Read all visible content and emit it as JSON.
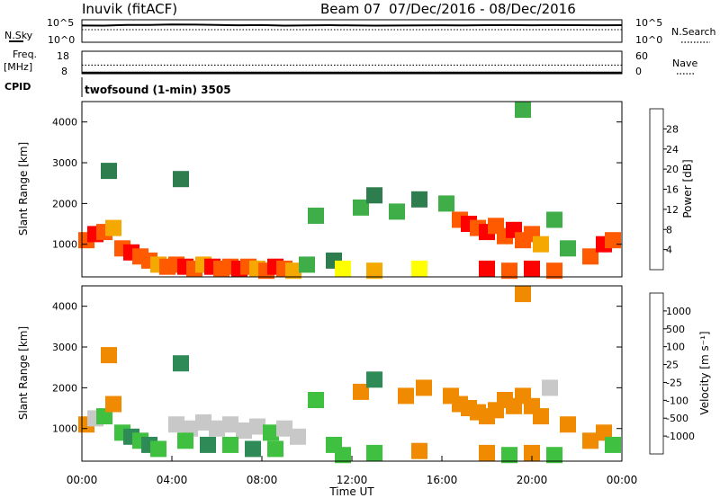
{
  "header": {
    "station": "Inuvik (fitACF)",
    "beam": "Beam 07",
    "date_range": "07/Dec/2016 - 08/Dec/2016"
  },
  "chart_data": [
    {
      "type": "line",
      "left_label": "N.Sky",
      "right_label": "N.Search",
      "left_ticks": [
        "10^5",
        "10^0"
      ],
      "right_ticks": [
        "10^5",
        "10^0"
      ],
      "series": [
        {
          "values": [
            5200,
            5000,
            7400,
            6800,
            9000,
            8400,
            7000,
            6000,
            6600,
            5000,
            5800,
            6200,
            5400,
            5000,
            5300,
            5800,
            6100,
            5600,
            6300,
            6500,
            5900,
            6700,
            6200,
            5900,
            6300
          ]
        }
      ],
      "x": [
        0,
        1,
        2,
        3,
        4,
        5,
        6,
        7,
        8,
        9,
        10,
        11,
        12,
        13,
        14,
        15,
        16,
        17,
        18,
        19,
        20,
        21,
        22,
        23,
        24
      ]
    },
    {
      "type": "line",
      "left_label": "Freq.",
      "left_unit": "[MHz]",
      "right_label": "Nave",
      "left_ticks": [
        "18",
        "8"
      ],
      "right_ticks": [
        "60",
        "0"
      ],
      "freq_mhz": 8.5,
      "nave": 23,
      "ylim_left": [
        8,
        18
      ],
      "ylim_right": [
        0,
        60
      ]
    },
    {
      "type": "table",
      "label": "CPID",
      "value": "twofsound (1-min) 3505"
    },
    {
      "type": "heatmap",
      "ylabel": "Slant Range [km]",
      "xlim": [
        0,
        24
      ],
      "ylim": [
        200,
        4500
      ],
      "yticks": [
        "4000",
        "3000",
        "2000",
        "1000"
      ],
      "ytick_values": [
        4000,
        3000,
        2000,
        1000
      ],
      "colorbar": {
        "label": "Power [dB]",
        "ticks": [
          "28",
          "24",
          "20",
          "16",
          "12",
          "8",
          "4"
        ],
        "colors": [
          "#0000ff",
          "#1f3fa0",
          "#2e7d4f",
          "#3fae49",
          "#ffff00",
          "#f5a800",
          "#ff5a00",
          "#ff0000"
        ]
      },
      "cells": [
        {
          "x": 0.2,
          "y": 1100,
          "v": 24
        },
        {
          "x": 0.6,
          "y": 1250,
          "v": 28
        },
        {
          "x": 1.0,
          "y": 1300,
          "v": 26
        },
        {
          "x": 1.4,
          "y": 1400,
          "v": 22
        },
        {
          "x": 1.8,
          "y": 900,
          "v": 26
        },
        {
          "x": 2.2,
          "y": 800,
          "v": 28
        },
        {
          "x": 2.6,
          "y": 700,
          "v": 26
        },
        {
          "x": 3.0,
          "y": 600,
          "v": 24
        },
        {
          "x": 3.4,
          "y": 500,
          "v": 22
        },
        {
          "x": 3.8,
          "y": 450,
          "v": 26
        },
        {
          "x": 4.2,
          "y": 500,
          "v": 24
        },
        {
          "x": 4.6,
          "y": 450,
          "v": 28
        },
        {
          "x": 5.0,
          "y": 400,
          "v": 26
        },
        {
          "x": 5.4,
          "y": 500,
          "v": 22
        },
        {
          "x": 5.8,
          "y": 450,
          "v": 28
        },
        {
          "x": 6.2,
          "y": 400,
          "v": 26
        },
        {
          "x": 6.6,
          "y": 450,
          "v": 24
        },
        {
          "x": 7.0,
          "y": 400,
          "v": 28
        },
        {
          "x": 7.4,
          "y": 450,
          "v": 26
        },
        {
          "x": 7.8,
          "y": 400,
          "v": 22
        },
        {
          "x": 8.2,
          "y": 350,
          "v": 26
        },
        {
          "x": 8.6,
          "y": 450,
          "v": 28
        },
        {
          "x": 9.0,
          "y": 400,
          "v": 24
        },
        {
          "x": 9.4,
          "y": 350,
          "v": 20
        },
        {
          "x": 10.0,
          "y": 500,
          "v": 14
        },
        {
          "x": 10.4,
          "y": 1700,
          "v": 12
        },
        {
          "x": 11.2,
          "y": 600,
          "v": 10
        },
        {
          "x": 12.4,
          "y": 1900,
          "v": 12
        },
        {
          "x": 13.0,
          "y": 2200,
          "v": 10
        },
        {
          "x": 14.0,
          "y": 1800,
          "v": 12
        },
        {
          "x": 15.0,
          "y": 2100,
          "v": 10
        },
        {
          "x": 16.2,
          "y": 2000,
          "v": 14
        },
        {
          "x": 16.8,
          "y": 1600,
          "v": 26
        },
        {
          "x": 17.2,
          "y": 1500,
          "v": 28
        },
        {
          "x": 17.6,
          "y": 1400,
          "v": 26
        },
        {
          "x": 18.0,
          "y": 1300,
          "v": 28
        },
        {
          "x": 18.4,
          "y": 1450,
          "v": 24
        },
        {
          "x": 18.8,
          "y": 1200,
          "v": 26
        },
        {
          "x": 19.2,
          "y": 1350,
          "v": 28
        },
        {
          "x": 19.6,
          "y": 1100,
          "v": 26
        },
        {
          "x": 20.0,
          "y": 1250,
          "v": 24
        },
        {
          "x": 20.4,
          "y": 1000,
          "v": 22
        },
        {
          "x": 21.0,
          "y": 1600,
          "v": 14
        },
        {
          "x": 21.6,
          "y": 900,
          "v": 12
        },
        {
          "x": 22.6,
          "y": 700,
          "v": 24
        },
        {
          "x": 23.2,
          "y": 1000,
          "v": 28
        },
        {
          "x": 23.6,
          "y": 1100,
          "v": 26
        },
        {
          "x": 18.0,
          "y": 400,
          "v": 28
        },
        {
          "x": 19.0,
          "y": 350,
          "v": 26
        },
        {
          "x": 20.0,
          "y": 400,
          "v": 28
        },
        {
          "x": 21.0,
          "y": 350,
          "v": 24
        },
        {
          "x": 13.0,
          "y": 350,
          "v": 20
        },
        {
          "x": 15.0,
          "y": 400,
          "v": 16
        },
        {
          "x": 11.6,
          "y": 400,
          "v": 18
        },
        {
          "x": 1.2,
          "y": 2800,
          "v": 10
        },
        {
          "x": 4.4,
          "y": 2600,
          "v": 8
        },
        {
          "x": 19.6,
          "y": 4300,
          "v": 12
        }
      ]
    },
    {
      "type": "heatmap",
      "ylabel": "Slant Range [km]",
      "xlabel": "Time UT",
      "xlim": [
        0,
        24
      ],
      "ylim": [
        200,
        4500
      ],
      "yticks": [
        "4000",
        "3000",
        "2000",
        "1000"
      ],
      "ytick_values": [
        4000,
        3000,
        2000,
        1000
      ],
      "xticks": [
        "00:00",
        "04:00",
        "08:00",
        "12:00",
        "16:00",
        "20:00",
        "00:00"
      ],
      "xtick_values": [
        0,
        4,
        8,
        12,
        16,
        20,
        24
      ],
      "colorbar": {
        "label": "Velocity [m s⁻¹]",
        "ticks": [
          "1000",
          "500",
          "100",
          "25",
          "-25",
          "-100",
          "-500",
          "-1000"
        ],
        "colors": [
          "#ff0000",
          "#ff5a00",
          "#f08a00",
          "#f5c000",
          "#c8c8c8",
          "#40c040",
          "#2e8b57",
          "#1f3fa0",
          "#0000ff"
        ]
      },
      "cells": [
        {
          "x": 0.2,
          "y": 1100,
          "v": -100
        },
        {
          "x": 0.6,
          "y": 1250,
          "v": 0
        },
        {
          "x": 1.0,
          "y": 1300,
          "v": 100
        },
        {
          "x": 1.4,
          "y": 1600,
          "v": -100
        },
        {
          "x": 1.8,
          "y": 900,
          "v": 100
        },
        {
          "x": 2.2,
          "y": 800,
          "v": 300
        },
        {
          "x": 2.6,
          "y": 700,
          "v": 100
        },
        {
          "x": 3.0,
          "y": 600,
          "v": 200
        },
        {
          "x": 3.4,
          "y": 500,
          "v": 100
        },
        {
          "x": 4.2,
          "y": 1100,
          "v": 0
        },
        {
          "x": 4.8,
          "y": 1000,
          "v": 0
        },
        {
          "x": 5.4,
          "y": 1150,
          "v": 0
        },
        {
          "x": 6.0,
          "y": 1000,
          "v": 0
        },
        {
          "x": 6.6,
          "y": 1100,
          "v": 0
        },
        {
          "x": 7.2,
          "y": 950,
          "v": 0
        },
        {
          "x": 7.8,
          "y": 1050,
          "v": 0
        },
        {
          "x": 8.4,
          "y": 900,
          "v": 60
        },
        {
          "x": 9.0,
          "y": 1000,
          "v": 0
        },
        {
          "x": 9.6,
          "y": 800,
          "v": 0
        },
        {
          "x": 4.6,
          "y": 700,
          "v": 100
        },
        {
          "x": 5.6,
          "y": 600,
          "v": 300
        },
        {
          "x": 6.6,
          "y": 600,
          "v": 100
        },
        {
          "x": 7.6,
          "y": 500,
          "v": 300
        },
        {
          "x": 8.6,
          "y": 500,
          "v": 100
        },
        {
          "x": 10.4,
          "y": 1700,
          "v": 100
        },
        {
          "x": 11.2,
          "y": 600,
          "v": 100
        },
        {
          "x": 12.4,
          "y": 1900,
          "v": -100
        },
        {
          "x": 13.0,
          "y": 2200,
          "v": 300
        },
        {
          "x": 14.4,
          "y": 1800,
          "v": -100
        },
        {
          "x": 15.2,
          "y": 2000,
          "v": -100
        },
        {
          "x": 16.4,
          "y": 1800,
          "v": -300
        },
        {
          "x": 16.8,
          "y": 1600,
          "v": -300
        },
        {
          "x": 17.2,
          "y": 1500,
          "v": -300
        },
        {
          "x": 17.6,
          "y": 1400,
          "v": -300
        },
        {
          "x": 18.0,
          "y": 1300,
          "v": -300
        },
        {
          "x": 18.4,
          "y": 1450,
          "v": -300
        },
        {
          "x": 18.8,
          "y": 1700,
          "v": -300
        },
        {
          "x": 19.2,
          "y": 1550,
          "v": -300
        },
        {
          "x": 19.6,
          "y": 1800,
          "v": -300
        },
        {
          "x": 20.0,
          "y": 1550,
          "v": -300
        },
        {
          "x": 20.4,
          "y": 1300,
          "v": -300
        },
        {
          "x": 20.8,
          "y": 2000,
          "v": 0
        },
        {
          "x": 21.6,
          "y": 1100,
          "v": -100
        },
        {
          "x": 22.6,
          "y": 700,
          "v": -300
        },
        {
          "x": 23.2,
          "y": 900,
          "v": -100
        },
        {
          "x": 23.6,
          "y": 600,
          "v": 100
        },
        {
          "x": 18.0,
          "y": 400,
          "v": -100
        },
        {
          "x": 19.0,
          "y": 350,
          "v": 100
        },
        {
          "x": 20.0,
          "y": 400,
          "v": -100
        },
        {
          "x": 21.0,
          "y": 350,
          "v": 100
        },
        {
          "x": 13.0,
          "y": 400,
          "v": 100
        },
        {
          "x": 15.0,
          "y": 450,
          "v": -100
        },
        {
          "x": 11.6,
          "y": 350,
          "v": 100
        },
        {
          "x": 4.4,
          "y": 2600,
          "v": 300
        },
        {
          "x": 19.6,
          "y": 4300,
          "v": -300
        },
        {
          "x": 1.2,
          "y": 2800,
          "v": -100
        }
      ]
    }
  ]
}
